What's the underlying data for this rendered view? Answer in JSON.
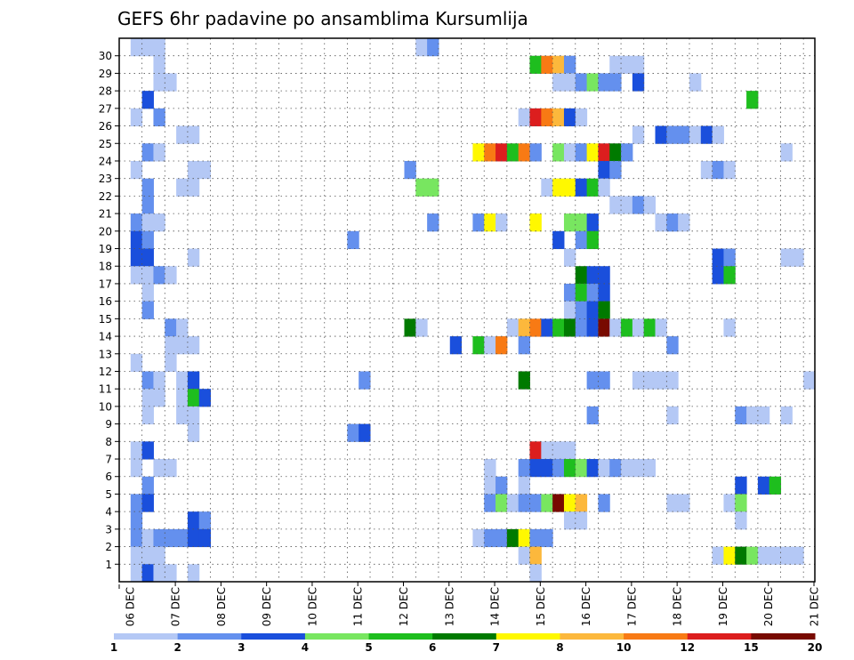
{
  "chart_data": {
    "type": "heatmap",
    "title": "GEFS 6hr padavine po ansamblima Kursumlija",
    "x_tick_labels": [
      "06 DEC",
      "07 DEC",
      "08 DEC",
      "09 DEC",
      "10 DEC",
      "11 DEC",
      "12 DEC",
      "13 DEC",
      "14 DEC",
      "15 DEC",
      "16 DEC",
      "17 DEC",
      "18 DEC",
      "19 DEC",
      "20 DEC",
      "21 DEC"
    ],
    "x_range": [
      0,
      61
    ],
    "y_range": [
      0,
      30
    ],
    "y_ticks": [
      1,
      2,
      3,
      4,
      5,
      6,
      7,
      8,
      9,
      10,
      11,
      12,
      13,
      14,
      15,
      16,
      17,
      18,
      19,
      20,
      21,
      22,
      23,
      24,
      25,
      26,
      27,
      28,
      29,
      30
    ],
    "grid": true,
    "colorbar": {
      "placement": "bottom",
      "levels": [
        "1",
        "2",
        "3",
        "4",
        "5",
        "6",
        "7",
        "8",
        "10",
        "12",
        "15",
        "20"
      ],
      "colors": [
        "#b4c8f5",
        "#6490ee",
        "#1a4fdc",
        "#78e660",
        "#1ebe1e",
        "#007a00",
        "#fff800",
        "#fcb83c",
        "#f87a14",
        "#dc1e1e",
        "#780a00"
      ]
    },
    "cells": [
      [
        1,
        30,
        1
      ],
      [
        2,
        30,
        1
      ],
      [
        3,
        30,
        1
      ],
      [
        26,
        30,
        1
      ],
      [
        27,
        30,
        2
      ],
      [
        3,
        29,
        1
      ],
      [
        36,
        29,
        5
      ],
      [
        37,
        29,
        9
      ],
      [
        38,
        29,
        8
      ],
      [
        39,
        29,
        2
      ],
      [
        43,
        29,
        1
      ],
      [
        44,
        29,
        1
      ],
      [
        45,
        29,
        1
      ],
      [
        3,
        28,
        1
      ],
      [
        4,
        28,
        1
      ],
      [
        38,
        28,
        1
      ],
      [
        39,
        28,
        1
      ],
      [
        40,
        28,
        2
      ],
      [
        41,
        28,
        4
      ],
      [
        42,
        28,
        2
      ],
      [
        43,
        28,
        2
      ],
      [
        45,
        28,
        3
      ],
      [
        50,
        28,
        1
      ],
      [
        2,
        27,
        3
      ],
      [
        55,
        27,
        5
      ],
      [
        1,
        26,
        1
      ],
      [
        3,
        26,
        2
      ],
      [
        35,
        26,
        1
      ],
      [
        36,
        26,
        10
      ],
      [
        37,
        26,
        9
      ],
      [
        38,
        26,
        8
      ],
      [
        39,
        26,
        3
      ],
      [
        40,
        26,
        1
      ],
      [
        5,
        25,
        1
      ],
      [
        6,
        25,
        1
      ],
      [
        45,
        25,
        1
      ],
      [
        47,
        25,
        3
      ],
      [
        48,
        25,
        2
      ],
      [
        49,
        25,
        2
      ],
      [
        50,
        25,
        1
      ],
      [
        51,
        25,
        3
      ],
      [
        52,
        25,
        1
      ],
      [
        2,
        24,
        2
      ],
      [
        3,
        24,
        1
      ],
      [
        31,
        24,
        7
      ],
      [
        32,
        24,
        9
      ],
      [
        33,
        24,
        10
      ],
      [
        34,
        24,
        5
      ],
      [
        35,
        24,
        9
      ],
      [
        36,
        24,
        2
      ],
      [
        38,
        24,
        4
      ],
      [
        39,
        24,
        1
      ],
      [
        40,
        24,
        2
      ],
      [
        41,
        24,
        7
      ],
      [
        42,
        24,
        10
      ],
      [
        43,
        24,
        6
      ],
      [
        44,
        24,
        2
      ],
      [
        58,
        24,
        1
      ],
      [
        1,
        23,
        1
      ],
      [
        6,
        23,
        1
      ],
      [
        7,
        23,
        1
      ],
      [
        25,
        23,
        2
      ],
      [
        42,
        23,
        3
      ],
      [
        43,
        23,
        2
      ],
      [
        51,
        23,
        1
      ],
      [
        52,
        23,
        2
      ],
      [
        53,
        23,
        1
      ],
      [
        2,
        22,
        2
      ],
      [
        5,
        22,
        1
      ],
      [
        6,
        22,
        1
      ],
      [
        26,
        22,
        4
      ],
      [
        27,
        22,
        4
      ],
      [
        37,
        22,
        1
      ],
      [
        38,
        22,
        7
      ],
      [
        39,
        22,
        7
      ],
      [
        40,
        22,
        3
      ],
      [
        41,
        22,
        5
      ],
      [
        42,
        22,
        1
      ],
      [
        2,
        21,
        2
      ],
      [
        43,
        21,
        1
      ],
      [
        44,
        21,
        1
      ],
      [
        45,
        21,
        2
      ],
      [
        46,
        21,
        1
      ],
      [
        1,
        20,
        2
      ],
      [
        2,
        20,
        1
      ],
      [
        3,
        20,
        1
      ],
      [
        27,
        20,
        2
      ],
      [
        31,
        20,
        2
      ],
      [
        32,
        20,
        7
      ],
      [
        33,
        20,
        1
      ],
      [
        36,
        20,
        7
      ],
      [
        39,
        20,
        4
      ],
      [
        40,
        20,
        4
      ],
      [
        41,
        20,
        3
      ],
      [
        47,
        20,
        1
      ],
      [
        48,
        20,
        2
      ],
      [
        49,
        20,
        1
      ],
      [
        1,
        19,
        3
      ],
      [
        2,
        19,
        2
      ],
      [
        20,
        19,
        2
      ],
      [
        38,
        19,
        3
      ],
      [
        40,
        19,
        2
      ],
      [
        41,
        19,
        5
      ],
      [
        1,
        18,
        3
      ],
      [
        2,
        18,
        3
      ],
      [
        6,
        18,
        1
      ],
      [
        39,
        18,
        1
      ],
      [
        52,
        18,
        3
      ],
      [
        53,
        18,
        2
      ],
      [
        58,
        18,
        1
      ],
      [
        59,
        18,
        1
      ],
      [
        1,
        17,
        1
      ],
      [
        2,
        17,
        1
      ],
      [
        3,
        17,
        2
      ],
      [
        4,
        17,
        1
      ],
      [
        40,
        17,
        6
      ],
      [
        41,
        17,
        3
      ],
      [
        42,
        17,
        3
      ],
      [
        52,
        17,
        3
      ],
      [
        53,
        17,
        5
      ],
      [
        2,
        16,
        1
      ],
      [
        39,
        16,
        2
      ],
      [
        40,
        16,
        5
      ],
      [
        41,
        16,
        2
      ],
      [
        42,
        16,
        3
      ],
      [
        2,
        15,
        2
      ],
      [
        39,
        15,
        1
      ],
      [
        40,
        15,
        2
      ],
      [
        41,
        15,
        3
      ],
      [
        42,
        15,
        6
      ],
      [
        4,
        14,
        2
      ],
      [
        5,
        14,
        1
      ],
      [
        25,
        14,
        6
      ],
      [
        26,
        14,
        1
      ],
      [
        34,
        14,
        1
      ],
      [
        35,
        14,
        8
      ],
      [
        36,
        14,
        9
      ],
      [
        37,
        14,
        3
      ],
      [
        38,
        14,
        5
      ],
      [
        39,
        14,
        6
      ],
      [
        40,
        14,
        2
      ],
      [
        41,
        14,
        3
      ],
      [
        42,
        14,
        11
      ],
      [
        43,
        14,
        1
      ],
      [
        44,
        14,
        5
      ],
      [
        45,
        14,
        1
      ],
      [
        46,
        14,
        5
      ],
      [
        47,
        14,
        1
      ],
      [
        53,
        14,
        1
      ],
      [
        4,
        13,
        1
      ],
      [
        5,
        13,
        1
      ],
      [
        6,
        13,
        1
      ],
      [
        29,
        13,
        3
      ],
      [
        31,
        13,
        5
      ],
      [
        32,
        13,
        1
      ],
      [
        33,
        13,
        9
      ],
      [
        35,
        13,
        2
      ],
      [
        48,
        13,
        2
      ],
      [
        1,
        12,
        1
      ],
      [
        4,
        12,
        1
      ],
      [
        2,
        11,
        2
      ],
      [
        3,
        11,
        1
      ],
      [
        5,
        11,
        1
      ],
      [
        6,
        11,
        3
      ],
      [
        21,
        11,
        2
      ],
      [
        35,
        11,
        6
      ],
      [
        41,
        11,
        2
      ],
      [
        42,
        11,
        2
      ],
      [
        45,
        11,
        1
      ],
      [
        46,
        11,
        1
      ],
      [
        47,
        11,
        1
      ],
      [
        48,
        11,
        1
      ],
      [
        60,
        11,
        1
      ],
      [
        2,
        10,
        1
      ],
      [
        3,
        10,
        1
      ],
      [
        5,
        10,
        1
      ],
      [
        6,
        10,
        5
      ],
      [
        7,
        10,
        3
      ],
      [
        2,
        9,
        1
      ],
      [
        5,
        9,
        1
      ],
      [
        6,
        9,
        1
      ],
      [
        41,
        9,
        2
      ],
      [
        48,
        9,
        1
      ],
      [
        54,
        9,
        2
      ],
      [
        55,
        9,
        1
      ],
      [
        56,
        9,
        1
      ],
      [
        58,
        9,
        1
      ],
      [
        6,
        8,
        1
      ],
      [
        20,
        8,
        2
      ],
      [
        21,
        8,
        3
      ],
      [
        1,
        7,
        1
      ],
      [
        2,
        7,
        3
      ],
      [
        36,
        7,
        10
      ],
      [
        37,
        7,
        1
      ],
      [
        38,
        7,
        1
      ],
      [
        39,
        7,
        1
      ],
      [
        1,
        6,
        1
      ],
      [
        3,
        6,
        1
      ],
      [
        4,
        6,
        1
      ],
      [
        32,
        6,
        1
      ],
      [
        35,
        6,
        2
      ],
      [
        36,
        6,
        3
      ],
      [
        37,
        6,
        3
      ],
      [
        38,
        6,
        2
      ],
      [
        39,
        6,
        5
      ],
      [
        40,
        6,
        4
      ],
      [
        41,
        6,
        3
      ],
      [
        42,
        6,
        1
      ],
      [
        43,
        6,
        2
      ],
      [
        44,
        6,
        1
      ],
      [
        45,
        6,
        1
      ],
      [
        46,
        6,
        1
      ],
      [
        2,
        5,
        2
      ],
      [
        32,
        5,
        1
      ],
      [
        33,
        5,
        2
      ],
      [
        35,
        5,
        1
      ],
      [
        54,
        5,
        3
      ],
      [
        56,
        5,
        3
      ],
      [
        57,
        5,
        5
      ],
      [
        1,
        4,
        2
      ],
      [
        2,
        4,
        3
      ],
      [
        32,
        4,
        2
      ],
      [
        33,
        4,
        4
      ],
      [
        34,
        4,
        1
      ],
      [
        35,
        4,
        2
      ],
      [
        36,
        4,
        2
      ],
      [
        37,
        4,
        4
      ],
      [
        38,
        4,
        11
      ],
      [
        39,
        4,
        7
      ],
      [
        40,
        4,
        8
      ],
      [
        42,
        4,
        2
      ],
      [
        48,
        4,
        1
      ],
      [
        49,
        4,
        1
      ],
      [
        53,
        4,
        1
      ],
      [
        54,
        4,
        4
      ],
      [
        1,
        3,
        2
      ],
      [
        6,
        3,
        3
      ],
      [
        7,
        3,
        2
      ],
      [
        39,
        3,
        1
      ],
      [
        40,
        3,
        1
      ],
      [
        54,
        3,
        1
      ],
      [
        1,
        2,
        2
      ],
      [
        2,
        2,
        1
      ],
      [
        3,
        2,
        2
      ],
      [
        4,
        2,
        2
      ],
      [
        5,
        2,
        2
      ],
      [
        6,
        2,
        3
      ],
      [
        7,
        2,
        3
      ],
      [
        31,
        2,
        1
      ],
      [
        32,
        2,
        2
      ],
      [
        33,
        2,
        2
      ],
      [
        34,
        2,
        6
      ],
      [
        35,
        2,
        7
      ],
      [
        36,
        2,
        2
      ],
      [
        37,
        2,
        2
      ],
      [
        1,
        1,
        1
      ],
      [
        2,
        1,
        1
      ],
      [
        3,
        1,
        1
      ],
      [
        35,
        1,
        1
      ],
      [
        36,
        1,
        8
      ],
      [
        52,
        1,
        1
      ],
      [
        53,
        1,
        7
      ],
      [
        54,
        1,
        6
      ],
      [
        55,
        1,
        4
      ],
      [
        56,
        1,
        1
      ],
      [
        57,
        1,
        1
      ],
      [
        58,
        1,
        1
      ],
      [
        59,
        1,
        1
      ],
      [
        1,
        0,
        1
      ],
      [
        2,
        0,
        3
      ],
      [
        3,
        0,
        1
      ],
      [
        4,
        0,
        1
      ],
      [
        6,
        0,
        1
      ],
      [
        36,
        0,
        1
      ]
    ]
  }
}
